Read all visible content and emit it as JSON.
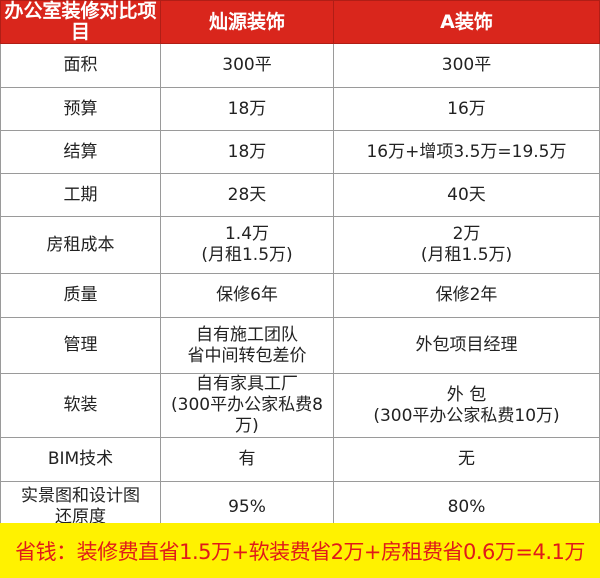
{
  "header": {
    "item": "办公室装修对比项目",
    "col1": "灿源装饰",
    "col2": "A装饰"
  },
  "rows": [
    {
      "item": [
        "面积"
      ],
      "a": [
        "300平"
      ],
      "b": [
        "300平"
      ]
    },
    {
      "item": [
        "预算"
      ],
      "a": [
        "18万"
      ],
      "b": [
        "16万"
      ]
    },
    {
      "item": [
        "结算"
      ],
      "a": [
        "18万"
      ],
      "b": [
        "16万+增项3.5万=19.5万"
      ]
    },
    {
      "item": [
        "工期"
      ],
      "a": [
        "28天"
      ],
      "b": [
        "40天"
      ]
    },
    {
      "item": [
        "房租成本"
      ],
      "a": [
        "1.4万",
        "(月租1.5万)"
      ],
      "b": [
        "2万",
        "(月租1.5万)"
      ]
    },
    {
      "item": [
        "质量"
      ],
      "a": [
        "保修6年"
      ],
      "b": [
        "保修2年"
      ]
    },
    {
      "item": [
        "管理"
      ],
      "a": [
        "自有施工团队",
        "省中间转包差价"
      ],
      "b": [
        "外包项目经理"
      ]
    },
    {
      "item": [
        "软装"
      ],
      "a": [
        "自有家具工厂",
        "(300平办公家私费8万)"
      ],
      "b": [
        "外 包",
        "(300平办公家私费10万)"
      ]
    },
    {
      "item": [
        "BIM技术"
      ],
      "a": [
        "有"
      ],
      "b": [
        "无"
      ]
    },
    {
      "item": [
        "实景图和设计图",
        "还原度"
      ],
      "a": [
        "95%"
      ],
      "b": [
        "80%"
      ]
    }
  ],
  "footer": "省钱：装修费直省1.5万+软装费省2万+房租费省0.6万=4.1万",
  "colors": {
    "header_bg": "#d9261c",
    "footer_bg": "#fff200",
    "footer_text": "#e01a1a"
  }
}
